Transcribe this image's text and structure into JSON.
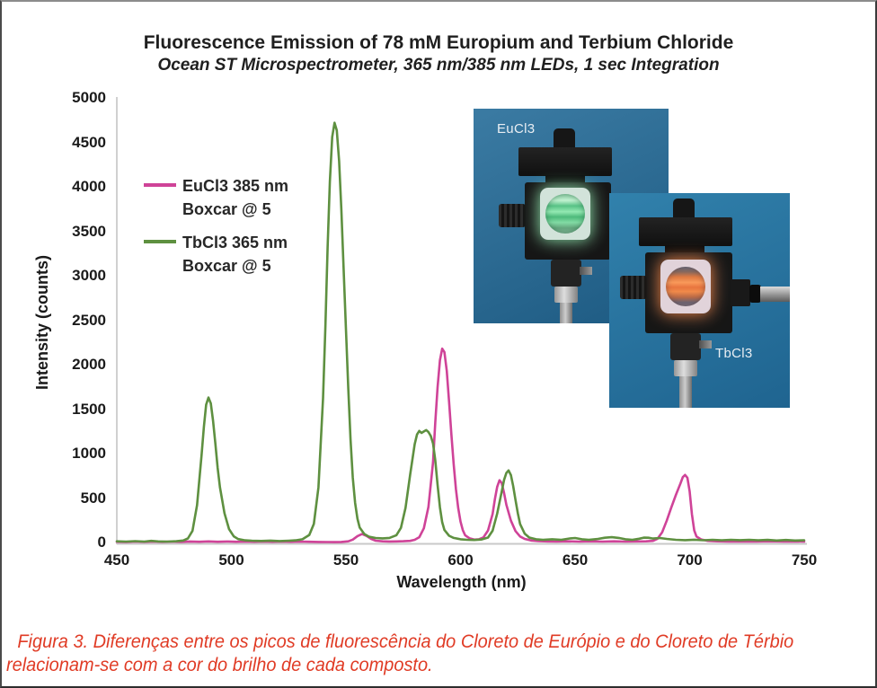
{
  "chart_data": {
    "type": "line",
    "title": "Fluorescence Emission of 78 mM Europium and Terbium Chloride",
    "subtitle": "Ocean ST Microspectrometer, 365 nm/385 nm LEDs, 1 sec Integration",
    "xlabel": "Wavelength (nm)",
    "ylabel": "Intensity (counts)",
    "xlim": [
      450,
      750
    ],
    "ylim": [
      0,
      5000
    ],
    "x_ticks": [
      450,
      500,
      550,
      600,
      650,
      700,
      750
    ],
    "y_ticks": [
      0,
      500,
      1000,
      1500,
      2000,
      2500,
      3000,
      3500,
      4000,
      4500,
      5000
    ],
    "grid": false,
    "legend_position": "upper-left-inside",
    "series": [
      {
        "name": "EuCl3 385 nm",
        "smoothing": "Boxcar @ 5",
        "color": "#cf4398",
        "main_peaks_nm": [
          592,
          617,
          698
        ],
        "main_peaks_counts": [
          2180,
          700,
          760
        ],
        "points": [
          [
            450,
            8
          ],
          [
            454,
            6
          ],
          [
            458,
            11
          ],
          [
            462,
            7
          ],
          [
            466,
            10
          ],
          [
            470,
            7
          ],
          [
            474,
            10
          ],
          [
            478,
            7
          ],
          [
            482,
            11
          ],
          [
            486,
            8
          ],
          [
            490,
            12
          ],
          [
            494,
            8
          ],
          [
            498,
            11
          ],
          [
            502,
            8
          ],
          [
            506,
            10
          ],
          [
            510,
            8
          ],
          [
            514,
            11
          ],
          [
            518,
            8
          ],
          [
            522,
            10
          ],
          [
            526,
            8
          ],
          [
            530,
            10
          ],
          [
            534,
            8
          ],
          [
            538,
            6
          ],
          [
            542,
            5
          ],
          [
            545,
            4
          ],
          [
            548,
            6
          ],
          [
            551,
            13
          ],
          [
            553,
            32
          ],
          [
            555,
            72
          ],
          [
            557,
            95
          ],
          [
            559,
            74
          ],
          [
            561,
            40
          ],
          [
            563,
            20
          ],
          [
            566,
            13
          ],
          [
            569,
            11
          ],
          [
            572,
            12
          ],
          [
            575,
            14
          ],
          [
            578,
            18
          ],
          [
            580,
            30
          ],
          [
            582,
            60
          ],
          [
            584,
            160
          ],
          [
            586,
            400
          ],
          [
            588,
            900
          ],
          [
            589,
            1350
          ],
          [
            590,
            1750
          ],
          [
            591,
            2050
          ],
          [
            592,
            2180
          ],
          [
            593,
            2140
          ],
          [
            594,
            1930
          ],
          [
            595,
            1580
          ],
          [
            596,
            1220
          ],
          [
            597,
            880
          ],
          [
            598,
            600
          ],
          [
            599,
            390
          ],
          [
            600,
            235
          ],
          [
            601,
            140
          ],
          [
            602,
            82
          ],
          [
            604,
            46
          ],
          [
            606,
            32
          ],
          [
            608,
            36
          ],
          [
            610,
            58
          ],
          [
            612,
            135
          ],
          [
            614,
            320
          ],
          [
            615,
            490
          ],
          [
            616,
            625
          ],
          [
            617,
            700
          ],
          [
            618,
            668
          ],
          [
            619,
            555
          ],
          [
            620,
            425
          ],
          [
            622,
            245
          ],
          [
            624,
            128
          ],
          [
            626,
            68
          ],
          [
            628,
            40
          ],
          [
            631,
            22
          ],
          [
            634,
            15
          ],
          [
            638,
            12
          ],
          [
            642,
            10
          ],
          [
            647,
            13
          ],
          [
            652,
            10
          ],
          [
            657,
            13
          ],
          [
            662,
            10
          ],
          [
            667,
            13
          ],
          [
            672,
            10
          ],
          [
            677,
            12
          ],
          [
            681,
            13
          ],
          [
            684,
            18
          ],
          [
            686,
            42
          ],
          [
            688,
            115
          ],
          [
            690,
            245
          ],
          [
            692,
            395
          ],
          [
            694,
            535
          ],
          [
            696,
            665
          ],
          [
            697,
            735
          ],
          [
            698,
            760
          ],
          [
            699,
            728
          ],
          [
            700,
            575
          ],
          [
            701,
            320
          ],
          [
            702,
            135
          ],
          [
            703,
            68
          ],
          [
            705,
            34
          ],
          [
            708,
            18
          ],
          [
            712,
            13
          ],
          [
            717,
            10
          ],
          [
            723,
            12
          ],
          [
            729,
            10
          ],
          [
            735,
            13
          ],
          [
            741,
            10
          ],
          [
            746,
            12
          ],
          [
            750,
            10
          ]
        ]
      },
      {
        "name": "TbCl3 365 nm",
        "smoothing": "Boxcar @ 5",
        "color": "#5e9040",
        "main_peaks_nm": [
          490,
          545,
          585,
          621
        ],
        "main_peaks_counts": [
          1630,
          4720,
          1265,
          810
        ],
        "points": [
          [
            450,
            13
          ],
          [
            454,
            10
          ],
          [
            458,
            15
          ],
          [
            462,
            10
          ],
          [
            465,
            18
          ],
          [
            468,
            12
          ],
          [
            472,
            10
          ],
          [
            476,
            14
          ],
          [
            479,
            22
          ],
          [
            481,
            45
          ],
          [
            483,
            130
          ],
          [
            485,
            420
          ],
          [
            487,
            980
          ],
          [
            488,
            1300
          ],
          [
            489,
            1550
          ],
          [
            490,
            1630
          ],
          [
            491,
            1565
          ],
          [
            492,
            1370
          ],
          [
            493,
            1110
          ],
          [
            494,
            840
          ],
          [
            495,
            620
          ],
          [
            497,
            330
          ],
          [
            499,
            150
          ],
          [
            501,
            70
          ],
          [
            503,
            38
          ],
          [
            506,
            24
          ],
          [
            509,
            20
          ],
          [
            513,
            17
          ],
          [
            517,
            21
          ],
          [
            521,
            16
          ],
          [
            525,
            20
          ],
          [
            528,
            24
          ],
          [
            531,
            36
          ],
          [
            534,
            85
          ],
          [
            536,
            210
          ],
          [
            538,
            620
          ],
          [
            540,
            1620
          ],
          [
            541,
            2420
          ],
          [
            542,
            3320
          ],
          [
            543,
            4060
          ],
          [
            544,
            4560
          ],
          [
            545,
            4720
          ],
          [
            546,
            4635
          ],
          [
            547,
            4290
          ],
          [
            548,
            3740
          ],
          [
            549,
            3080
          ],
          [
            550,
            2400
          ],
          [
            551,
            1730
          ],
          [
            552,
            1160
          ],
          [
            553,
            730
          ],
          [
            554,
            445
          ],
          [
            555,
            268
          ],
          [
            556,
            168
          ],
          [
            558,
            96
          ],
          [
            560,
            66
          ],
          [
            563,
            50
          ],
          [
            566,
            46
          ],
          [
            569,
            52
          ],
          [
            572,
            82
          ],
          [
            574,
            165
          ],
          [
            576,
            390
          ],
          [
            578,
            760
          ],
          [
            580,
            1105
          ],
          [
            581,
            1215
          ],
          [
            582,
            1255
          ],
          [
            583,
            1232
          ],
          [
            584,
            1248
          ],
          [
            585,
            1265
          ],
          [
            586,
            1242
          ],
          [
            587,
            1198
          ],
          [
            588,
            1115
          ],
          [
            589,
            925
          ],
          [
            590,
            645
          ],
          [
            591,
            395
          ],
          [
            592,
            228
          ],
          [
            593,
            140
          ],
          [
            595,
            76
          ],
          [
            597,
            52
          ],
          [
            600,
            36
          ],
          [
            603,
            30
          ],
          [
            606,
            28
          ],
          [
            609,
            33
          ],
          [
            612,
            56
          ],
          [
            614,
            132
          ],
          [
            616,
            325
          ],
          [
            618,
            575
          ],
          [
            619,
            705
          ],
          [
            620,
            782
          ],
          [
            621,
            810
          ],
          [
            622,
            758
          ],
          [
            623,
            635
          ],
          [
            624,
            478
          ],
          [
            625,
            328
          ],
          [
            626,
            208
          ],
          [
            628,
            100
          ],
          [
            630,
            56
          ],
          [
            633,
            36
          ],
          [
            636,
            30
          ],
          [
            640,
            36
          ],
          [
            644,
            30
          ],
          [
            648,
            46
          ],
          [
            650,
            50
          ],
          [
            653,
            36
          ],
          [
            656,
            30
          ],
          [
            660,
            40
          ],
          [
            663,
            54
          ],
          [
            666,
            60
          ],
          [
            669,
            52
          ],
          [
            672,
            36
          ],
          [
            675,
            30
          ],
          [
            678,
            42
          ],
          [
            680,
            55
          ],
          [
            682,
            54
          ],
          [
            684,
            44
          ],
          [
            687,
            50
          ],
          [
            690,
            40
          ],
          [
            694,
            30
          ],
          [
            698,
            26
          ],
          [
            702,
            31
          ],
          [
            706,
            25
          ],
          [
            710,
            30
          ],
          [
            714,
            25
          ],
          [
            718,
            30
          ],
          [
            722,
            26
          ],
          [
            726,
            30
          ],
          [
            730,
            25
          ],
          [
            734,
            29
          ],
          [
            738,
            22
          ],
          [
            742,
            28
          ],
          [
            746,
            22
          ],
          [
            750,
            25
          ]
        ]
      }
    ]
  },
  "inset": {
    "photos": [
      {
        "label": "EuCl3",
        "glow_color": "#8fe7ae",
        "bg1": "#3b7ba3",
        "bg2": "#1d5a82"
      },
      {
        "label": "TbCl3",
        "glow_color": "#f58648",
        "bg1": "#3181ac",
        "bg2": "#1f6490"
      }
    ]
  },
  "caption": {
    "color": "#e03b25",
    "lines": [
      "Figura 3. Diferenças entre os picos de fluorescência do Cloreto de Európio e do Cloreto de Térbio",
      "relacionam-se com a cor do brilho de cada composto."
    ]
  }
}
